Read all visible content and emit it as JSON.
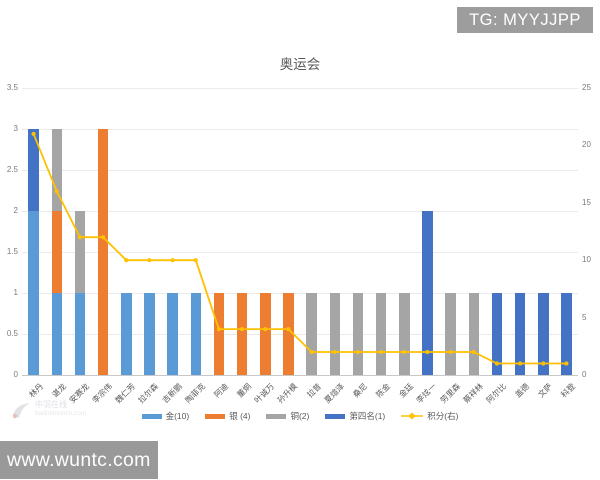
{
  "watermarks": {
    "telegram": "TG: MYYJJPP",
    "site": "www.wuntc.com",
    "logo_title": "中羽在线",
    "logo_domain": "badmintoncn.com"
  },
  "chart": {
    "title": "奥运会"
  },
  "chart_data": {
    "type": "bar",
    "subtype": "stacked-bars-with-line-on-secondary-axis",
    "title": "奥运会",
    "categories": [
      "林丹",
      "谌龙",
      "安赛龙",
      "李宗伟",
      "魏仁芳",
      "拉尔森",
      "吉新鹏",
      "陶菲克",
      "阿迪",
      "董炯",
      "叶诚万",
      "孙升模",
      "拉昔",
      "夏煊泽",
      "桑尼",
      "陈金",
      "金廷",
      "李炫一",
      "劳里森",
      "蔡祥林",
      "阿尔比",
      "盖德",
      "文萨",
      "科登"
    ],
    "series": [
      {
        "name": "金(10)",
        "type": "bar",
        "color": "#5B9BD5",
        "values": [
          2,
          1,
          1,
          0,
          1,
          1,
          1,
          1,
          0,
          0,
          0,
          0,
          0,
          0,
          0,
          0,
          0,
          0,
          0,
          0,
          0,
          0,
          0,
          0
        ]
      },
      {
        "name": "银 (4)",
        "type": "bar",
        "color": "#ED7D31",
        "values": [
          0,
          1,
          0,
          3,
          0,
          0,
          0,
          0,
          1,
          1,
          1,
          1,
          0,
          0,
          0,
          0,
          0,
          0,
          0,
          0,
          0,
          0,
          0,
          0
        ]
      },
      {
        "name": "铜(2)",
        "type": "bar",
        "color": "#A5A5A5",
        "values": [
          0,
          1,
          1,
          0,
          0,
          0,
          0,
          0,
          0,
          0,
          0,
          0,
          1,
          1,
          1,
          1,
          1,
          0,
          1,
          1,
          0,
          0,
          0,
          0
        ]
      },
      {
        "name": "第四名(1)",
        "type": "bar",
        "color": "#4472C4",
        "values": [
          1,
          0,
          0,
          0,
          0,
          0,
          0,
          0,
          0,
          0,
          0,
          0,
          0,
          0,
          0,
          0,
          0,
          2,
          0,
          0,
          1,
          1,
          1,
          1
        ]
      },
      {
        "name": "积分(右)",
        "type": "line",
        "axis": "right",
        "color": "#FFC000",
        "values": [
          21,
          16,
          12,
          12,
          10,
          10,
          10,
          10,
          4,
          4,
          4,
          4,
          2,
          2,
          2,
          2,
          2,
          2,
          2,
          2,
          1,
          1,
          1,
          1
        ]
      }
    ],
    "left_axis": {
      "ticks": [
        0,
        0.5,
        1,
        1.5,
        2,
        2.5,
        3,
        3.5
      ],
      "range": [
        0,
        3.5
      ]
    },
    "right_axis": {
      "ticks": [
        0,
        5,
        10,
        15,
        20,
        25
      ],
      "range": [
        0,
        25
      ]
    },
    "grid": true,
    "legend_position": "bottom",
    "bar_stacked": true
  }
}
